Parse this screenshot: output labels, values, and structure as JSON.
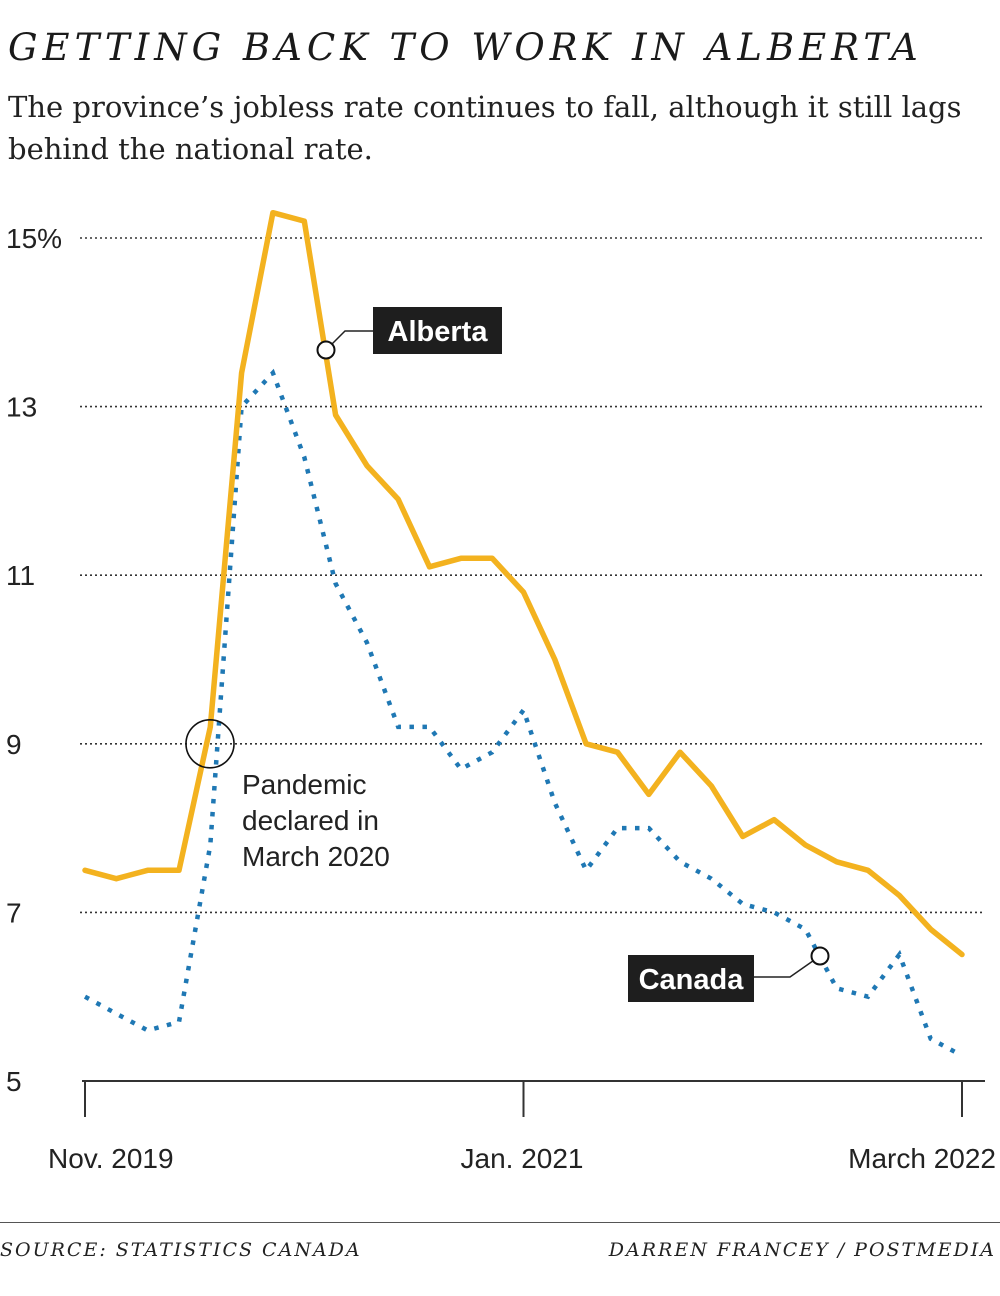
{
  "header": {
    "title": "GETTING BACK TO WORK IN ALBERTA",
    "subtitle": "The province’s jobless rate continues to fall, although it still lags behind the national rate."
  },
  "footer": {
    "source": "SOURCE: STATISTICS CANADA",
    "credit": "DARREN FRANCEY / POSTMEDIA"
  },
  "colors": {
    "alberta": "#f3b21f",
    "canada": "#1f78b4",
    "tag_bg": "#1e1e1e"
  },
  "chart_data": {
    "type": "line",
    "title": "GETTING BACK TO WORK IN ALBERTA",
    "xlabel": "",
    "ylabel": "",
    "x_tick_labels": [
      "Nov. 2019",
      "Jan. 2021",
      "March 2022"
    ],
    "x_tick_index": [
      0,
      14,
      28
    ],
    "ylim": [
      5,
      15.5
    ],
    "y_ticks": [
      5,
      7,
      9,
      11,
      13,
      15
    ],
    "y_tick_labels": [
      "5",
      "7",
      "9",
      "11",
      "13",
      "15%"
    ],
    "grid": true,
    "series": [
      {
        "name": "Alberta",
        "style": "solid",
        "values": [
          7.5,
          7.4,
          7.5,
          7.5,
          9.2,
          13.4,
          15.3,
          15.2,
          12.9,
          12.3,
          11.9,
          11.1,
          11.2,
          11.2,
          10.8,
          10.0,
          9.0,
          8.9,
          8.4,
          8.9,
          8.5,
          7.9,
          8.1,
          7.8,
          7.6,
          7.5,
          7.2,
          6.8,
          6.5
        ]
      },
      {
        "name": "Canada",
        "style": "dotted",
        "values": [
          6.0,
          5.8,
          5.6,
          5.7,
          7.8,
          13.0,
          13.4,
          12.4,
          10.9,
          10.2,
          9.2,
          9.2,
          8.7,
          8.9,
          9.4,
          8.3,
          7.5,
          8.0,
          8.0,
          7.6,
          7.4,
          7.1,
          7.0,
          6.8,
          6.1,
          6.0,
          6.5,
          5.5,
          5.3
        ]
      }
    ],
    "annotations": [
      {
        "text_lines": [
          "Pandemic",
          "declared in",
          "March 2020"
        ],
        "index": 4,
        "value": 9.0
      }
    ]
  }
}
